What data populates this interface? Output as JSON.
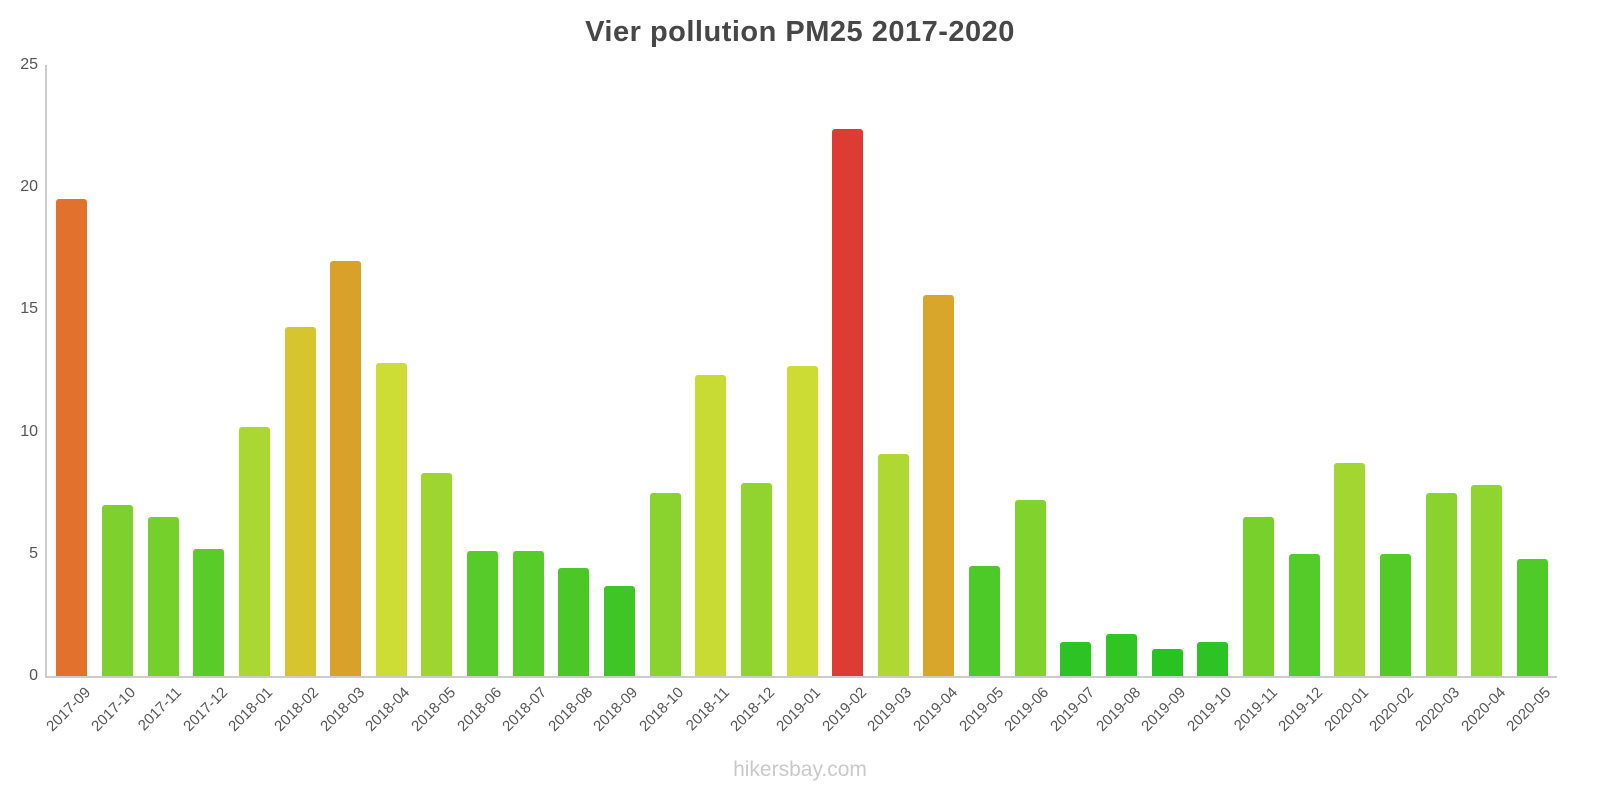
{
  "title": "Vier pollution PM25 2017-2020",
  "watermark": "hikersbay.com",
  "chart_data": {
    "type": "bar",
    "title": "Vier pollution PM25 2017-2020",
    "xlabel": "",
    "ylabel": "",
    "ylim": [
      0,
      25
    ],
    "yticks": [
      0,
      5,
      10,
      15,
      20,
      25
    ],
    "grid": false,
    "legend": "none",
    "axis_color": "#cccccc",
    "categories": [
      "2017-09",
      "2017-10",
      "2017-11",
      "2017-12",
      "2018-01",
      "2018-02",
      "2018-03",
      "2018-04",
      "2018-05",
      "2018-06",
      "2018-07",
      "2018-08",
      "2018-09",
      "2018-10",
      "2018-11",
      "2018-12",
      "2019-01",
      "2019-02",
      "2019-03",
      "2019-04",
      "2019-05",
      "2019-06",
      "2019-07",
      "2019-08",
      "2019-09",
      "2019-10",
      "2019-11",
      "2019-12",
      "2020-01",
      "2020-02",
      "2020-03",
      "2020-04",
      "2020-05"
    ],
    "values": [
      19.5,
      7.0,
      6.5,
      5.2,
      10.2,
      14.3,
      17.0,
      12.8,
      8.3,
      5.1,
      5.1,
      4.4,
      3.7,
      7.5,
      12.3,
      7.9,
      12.7,
      22.4,
      9.1,
      15.6,
      4.5,
      7.2,
      1.4,
      1.7,
      1.1,
      1.4,
      6.5,
      5.0,
      8.7,
      5.0,
      7.5,
      7.8,
      4.8
    ],
    "colors": [
      "#e1712d",
      "#7ed12c",
      "#76d02b",
      "#5acc29",
      "#abd732",
      "#d6c52e",
      "#d8a12a",
      "#cedd35",
      "#9ed530",
      "#57cb29",
      "#57cb29",
      "#4bc827",
      "#3fc626",
      "#8ad32e",
      "#c8db34",
      "#92d42f",
      "#cddc35",
      "#dd3c32",
      "#b0d832",
      "#d9a62c",
      "#4dc928",
      "#82d22d",
      "#2dc324",
      "#31c425",
      "#29c223",
      "#2dc324",
      "#77d02b",
      "#55cb29",
      "#a4d631",
      "#53ca28",
      "#8ad32e",
      "#90d42f",
      "#50ca28"
    ]
  }
}
